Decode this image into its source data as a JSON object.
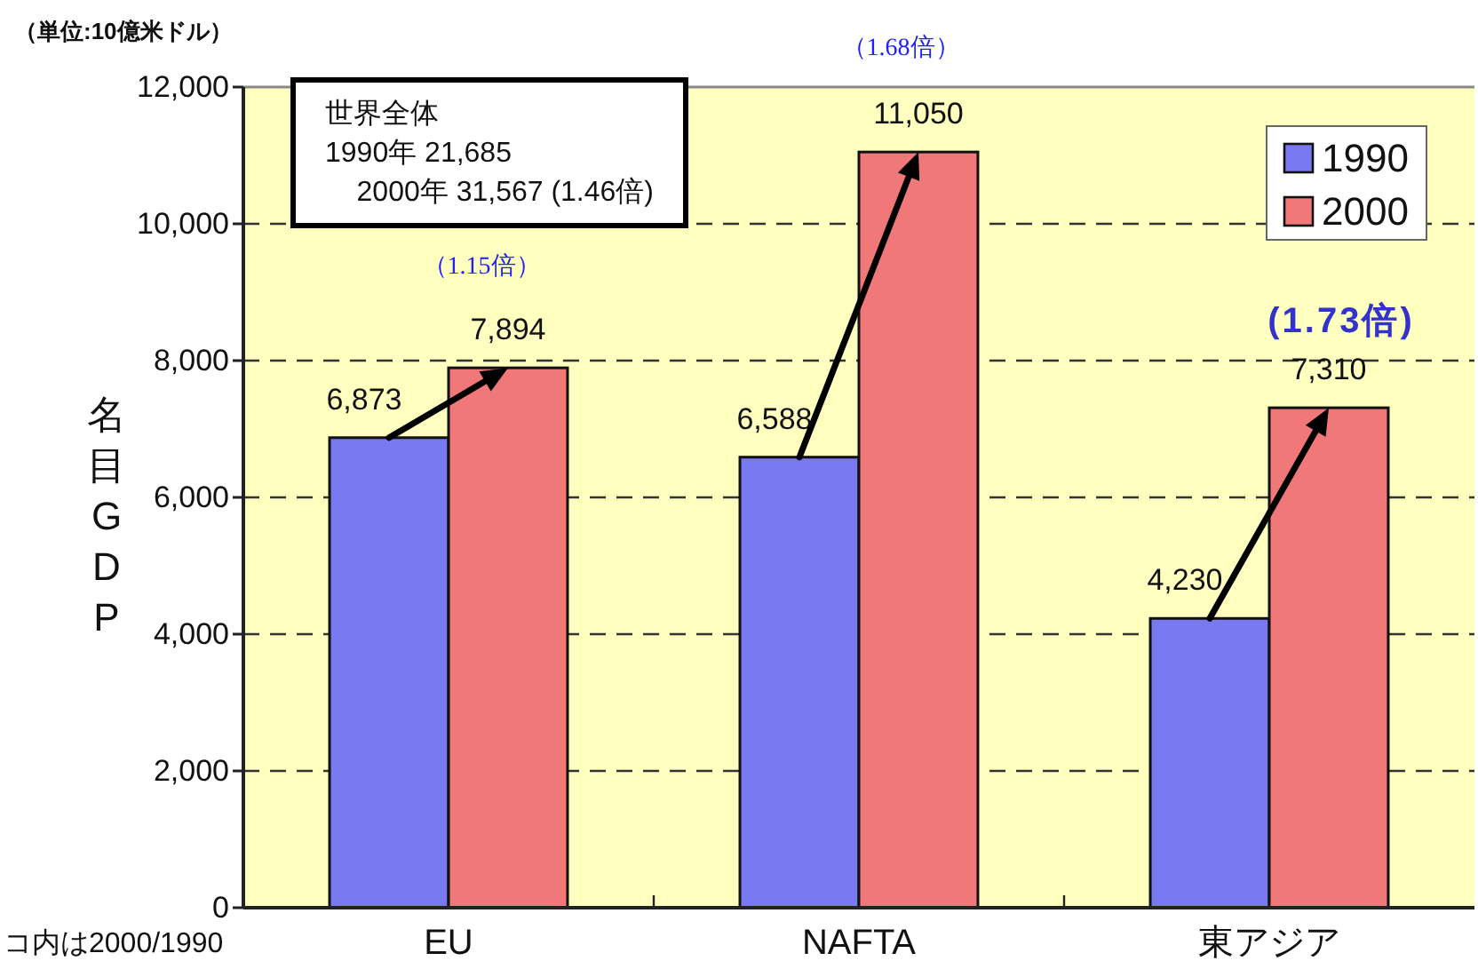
{
  "chart_data": {
    "type": "bar",
    "ylabel": "名目GDP",
    "categories": [
      "EU",
      "NAFTA",
      "東アジア"
    ],
    "series": [
      {
        "name": "1990",
        "color": "#7878f0",
        "values": [
          6873,
          6588,
          4230
        ],
        "value_labels": [
          "6,873",
          "6,588",
          "4,230"
        ]
      },
      {
        "name": "2000",
        "color": "#f07878",
        "values": [
          7894,
          11050,
          7310
        ],
        "value_labels": [
          "7,894",
          "11,050",
          "7,310"
        ]
      }
    ],
    "ylim": [
      0,
      12000
    ],
    "yticks": [
      0,
      {
        "value": 2000,
        "label": "2,000"
      },
      {
        "value": 4000,
        "label": "4,000"
      },
      {
        "value": 6000,
        "label": "6,000"
      },
      {
        "value": 8000,
        "label": "8,000"
      },
      {
        "value": 10000,
        "label": "10,000"
      },
      {
        "value": 12000,
        "label": "12,000"
      }
    ],
    "grid": "y",
    "legend": "top right",
    "annotations": [
      "（単位:10億米ドル）",
      "世界全体\n1990年 21,685\n    2000年 31,567 (1.46倍)",
      "（1.15倍）",
      "（1.68倍）",
      "(1.73倍)",
      "コ内は2000/1990"
    ]
  }
}
